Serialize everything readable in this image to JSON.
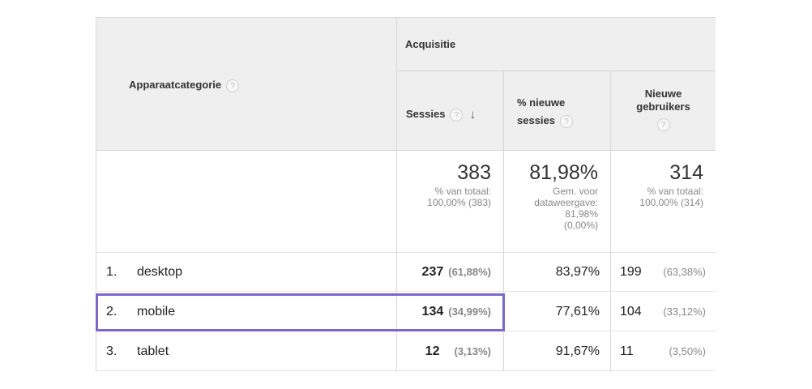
{
  "header": {
    "dimension_label": "Apparaatcategorie",
    "group_label": "Acquisitie",
    "help_glyph": "?",
    "sort_glyph": "↓",
    "columns": [
      {
        "label": "Sessies"
      },
      {
        "label_line1": "% nieuwe",
        "label_line2": "sessies"
      },
      {
        "label_line1": "Nieuwe",
        "label_line2": "gebruikers"
      }
    ]
  },
  "totals": {
    "sessions": {
      "value": "383",
      "line1": "% van totaal:",
      "line2": "100,00% (383)"
    },
    "new_sessions_pct": {
      "value": "81,98%",
      "line1": "Gem. voor",
      "line2": "dataweergave:",
      "line3": "81,98%",
      "line4": "(0,00%)"
    },
    "new_users": {
      "value": "314",
      "line1": "% van totaal:",
      "line2": "100,00% (314)"
    }
  },
  "rows": [
    {
      "index": "1.",
      "category": "desktop",
      "sessions": "237",
      "sessions_pct": "(61,88%)",
      "new_sessions_pct": "83,97%",
      "new_users": "199",
      "new_users_pct": "(63,38%)"
    },
    {
      "index": "2.",
      "category": "mobile",
      "sessions": "134",
      "sessions_pct": "(34,99%)",
      "new_sessions_pct": "77,61%",
      "new_users": "104",
      "new_users_pct": "(33,12%)"
    },
    {
      "index": "3.",
      "category": "tablet",
      "sessions": "12",
      "sessions_pct": "(3,13%)",
      "new_sessions_pct": "91,67%",
      "new_users": "11",
      "new_users_pct": "(3,50%)"
    }
  ],
  "highlight_color": "#7b68c9"
}
